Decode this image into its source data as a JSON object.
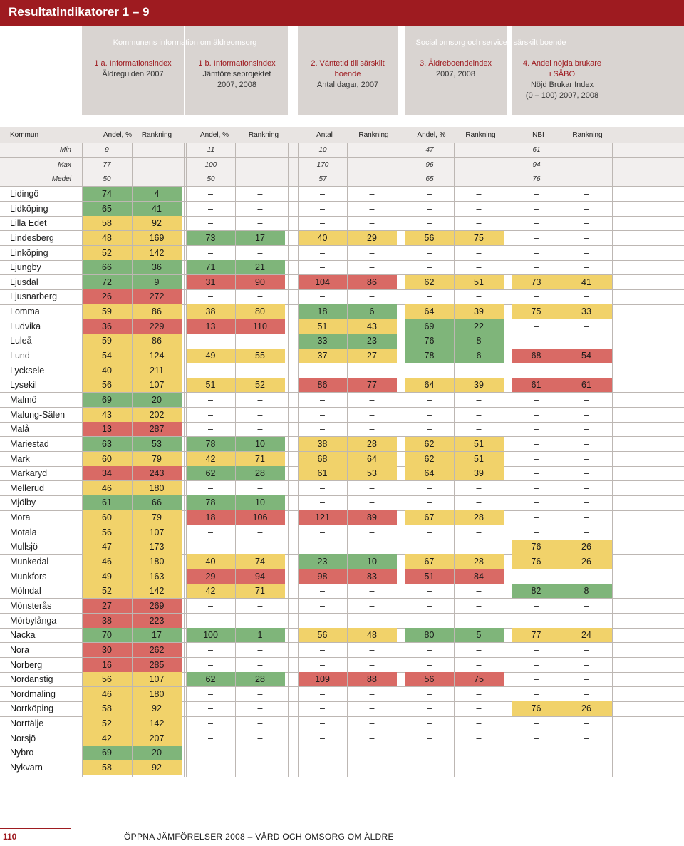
{
  "title": "Resultatindikatorer 1 – 9",
  "categories": {
    "left": "Kommunens information om äldreomsorg",
    "right": "Social omsorg och service i särskilt boende"
  },
  "indicators": [
    {
      "title": "1 a. Informationsindex",
      "sub1": "Äldreguiden 2007",
      "sub2": ""
    },
    {
      "title": "1 b. Informationsindex",
      "sub1": "Jämförelseprojektet",
      "sub2": "2007, 2008"
    },
    {
      "title": "2. Väntetid till särskilt",
      "title2": "boende",
      "sub1": "Antal dagar, 2007",
      "sub2": ""
    },
    {
      "title": "3. Äldreboendeindex",
      "sub1": "2007, 2008",
      "sub2": ""
    },
    {
      "title": "4. Andel nöjda brukare",
      "title2": "i SÄBO",
      "sub1": "Nöjd Brukar Index",
      "sub2": "(0 – 100) 2007, 2008"
    }
  ],
  "columns": [
    "Kommun",
    "Andel, %",
    "Rankning",
    "Andel, %",
    "Rankning",
    "Antal",
    "Rankning",
    "Andel, %",
    "Rankning",
    "NBI",
    "Rankning"
  ],
  "stats": [
    {
      "label": "Min",
      "values": [
        "9",
        "11",
        "10",
        "47",
        "61"
      ]
    },
    {
      "label": "Max",
      "values": [
        "77",
        "100",
        "170",
        "96",
        "94"
      ]
    },
    {
      "label": "Medel",
      "values": [
        "50",
        "50",
        "57",
        "65",
        "76"
      ]
    }
  ],
  "dash": "–",
  "rows": [
    {
      "name": "Lidingö",
      "v": [
        "74",
        "4",
        "–",
        "–",
        "–",
        "–",
        "–",
        "–",
        "–",
        "–"
      ],
      "c": [
        "g",
        "g",
        "",
        "",
        "",
        "",
        "",
        "",
        "",
        ""
      ]
    },
    {
      "name": "Lidköping",
      "v": [
        "65",
        "41",
        "–",
        "–",
        "–",
        "–",
        "–",
        "–",
        "–",
        "–"
      ],
      "c": [
        "g",
        "g",
        "",
        "",
        "",
        "",
        "",
        "",
        "",
        ""
      ]
    },
    {
      "name": "Lilla Edet",
      "v": [
        "58",
        "92",
        "–",
        "–",
        "–",
        "–",
        "–",
        "–",
        "–",
        "–"
      ],
      "c": [
        "y",
        "y",
        "",
        "",
        "",
        "",
        "",
        "",
        "",
        ""
      ]
    },
    {
      "name": "Lindesberg",
      "v": [
        "48",
        "169",
        "73",
        "17",
        "40",
        "29",
        "56",
        "75",
        "–",
        "–"
      ],
      "c": [
        "y",
        "y",
        "g",
        "g",
        "y",
        "y",
        "y",
        "y",
        "",
        ""
      ]
    },
    {
      "name": "Linköping",
      "v": [
        "52",
        "142",
        "–",
        "–",
        "–",
        "–",
        "–",
        "–",
        "–",
        "–"
      ],
      "c": [
        "y",
        "y",
        "",
        "",
        "",
        "",
        "",
        "",
        "",
        ""
      ]
    },
    {
      "name": "Ljungby",
      "v": [
        "66",
        "36",
        "71",
        "21",
        "–",
        "–",
        "–",
        "–",
        "–",
        "–"
      ],
      "c": [
        "g",
        "g",
        "g",
        "g",
        "",
        "",
        "",
        "",
        "",
        ""
      ]
    },
    {
      "name": "Ljusdal",
      "v": [
        "72",
        "9",
        "31",
        "90",
        "104",
        "86",
        "62",
        "51",
        "73",
        "41"
      ],
      "c": [
        "g",
        "g",
        "r",
        "r",
        "r",
        "r",
        "y",
        "y",
        "y",
        "y"
      ]
    },
    {
      "name": "Ljusnarberg",
      "v": [
        "26",
        "272",
        "–",
        "–",
        "–",
        "–",
        "–",
        "–",
        "–",
        "–"
      ],
      "c": [
        "r",
        "r",
        "",
        "",
        "",
        "",
        "",
        "",
        "",
        ""
      ]
    },
    {
      "name": "Lomma",
      "v": [
        "59",
        "86",
        "38",
        "80",
        "18",
        "6",
        "64",
        "39",
        "75",
        "33"
      ],
      "c": [
        "y",
        "y",
        "y",
        "y",
        "g",
        "g",
        "y",
        "y",
        "y",
        "y"
      ]
    },
    {
      "name": "Ludvika",
      "v": [
        "36",
        "229",
        "13",
        "110",
        "51",
        "43",
        "69",
        "22",
        "–",
        "–"
      ],
      "c": [
        "r",
        "r",
        "r",
        "r",
        "y",
        "y",
        "g",
        "g",
        "",
        ""
      ]
    },
    {
      "name": "Luleå",
      "v": [
        "59",
        "86",
        "–",
        "–",
        "33",
        "23",
        "76",
        "8",
        "–",
        "–"
      ],
      "c": [
        "y",
        "y",
        "",
        "",
        "g",
        "g",
        "g",
        "g",
        "",
        ""
      ]
    },
    {
      "name": "Lund",
      "v": [
        "54",
        "124",
        "49",
        "55",
        "37",
        "27",
        "78",
        "6",
        "68",
        "54"
      ],
      "c": [
        "y",
        "y",
        "y",
        "y",
        "y",
        "y",
        "g",
        "g",
        "r",
        "r"
      ]
    },
    {
      "name": "Lycksele",
      "v": [
        "40",
        "211",
        "–",
        "–",
        "–",
        "–",
        "–",
        "–",
        "–",
        "–"
      ],
      "c": [
        "y",
        "y",
        "",
        "",
        "",
        "",
        "",
        "",
        "",
        ""
      ]
    },
    {
      "name": "Lysekil",
      "v": [
        "56",
        "107",
        "51",
        "52",
        "86",
        "77",
        "64",
        "39",
        "61",
        "61"
      ],
      "c": [
        "y",
        "y",
        "y",
        "y",
        "r",
        "r",
        "y",
        "y",
        "r",
        "r"
      ]
    },
    {
      "name": "Malmö",
      "v": [
        "69",
        "20",
        "–",
        "–",
        "–",
        "–",
        "–",
        "–",
        "–",
        "–"
      ],
      "c": [
        "g",
        "g",
        "",
        "",
        "",
        "",
        "",
        "",
        "",
        ""
      ]
    },
    {
      "name": "Malung-Sälen",
      "v": [
        "43",
        "202",
        "–",
        "–",
        "–",
        "–",
        "–",
        "–",
        "–",
        "–"
      ],
      "c": [
        "y",
        "y",
        "",
        "",
        "",
        "",
        "",
        "",
        "",
        ""
      ]
    },
    {
      "name": "Malå",
      "v": [
        "13",
        "287",
        "–",
        "–",
        "–",
        "–",
        "–",
        "–",
        "–",
        "–"
      ],
      "c": [
        "r",
        "r",
        "",
        "",
        "",
        "",
        "",
        "",
        "",
        ""
      ]
    },
    {
      "name": "Mariestad",
      "v": [
        "63",
        "53",
        "78",
        "10",
        "38",
        "28",
        "62",
        "51",
        "–",
        "–"
      ],
      "c": [
        "g",
        "g",
        "g",
        "g",
        "y",
        "y",
        "y",
        "y",
        "",
        ""
      ]
    },
    {
      "name": "Mark",
      "v": [
        "60",
        "79",
        "42",
        "71",
        "68",
        "64",
        "62",
        "51",
        "–",
        "–"
      ],
      "c": [
        "y",
        "y",
        "y",
        "y",
        "y",
        "y",
        "y",
        "y",
        "",
        ""
      ]
    },
    {
      "name": "Markaryd",
      "v": [
        "34",
        "243",
        "62",
        "28",
        "61",
        "53",
        "64",
        "39",
        "–",
        "–"
      ],
      "c": [
        "r",
        "r",
        "g",
        "g",
        "y",
        "y",
        "y",
        "y",
        "",
        ""
      ]
    },
    {
      "name": "Mellerud",
      "v": [
        "46",
        "180",
        "–",
        "–",
        "–",
        "–",
        "–",
        "–",
        "–",
        "–"
      ],
      "c": [
        "y",
        "y",
        "",
        "",
        "",
        "",
        "",
        "",
        "",
        ""
      ]
    },
    {
      "name": "Mjölby",
      "v": [
        "61",
        "66",
        "78",
        "10",
        "–",
        "–",
        "–",
        "–",
        "–",
        "–"
      ],
      "c": [
        "g",
        "g",
        "g",
        "g",
        "",
        "",
        "",
        "",
        "",
        ""
      ]
    },
    {
      "name": "Mora",
      "v": [
        "60",
        "79",
        "18",
        "106",
        "121",
        "89",
        "67",
        "28",
        "–",
        "–"
      ],
      "c": [
        "y",
        "y",
        "r",
        "r",
        "r",
        "r",
        "y",
        "y",
        "",
        ""
      ]
    },
    {
      "name": "Motala",
      "v": [
        "56",
        "107",
        "–",
        "–",
        "–",
        "–",
        "–",
        "–",
        "–",
        "–"
      ],
      "c": [
        "y",
        "y",
        "",
        "",
        "",
        "",
        "",
        "",
        "",
        ""
      ]
    },
    {
      "name": "Mullsjö",
      "v": [
        "47",
        "173",
        "–",
        "–",
        "–",
        "–",
        "–",
        "–",
        "76",
        "26"
      ],
      "c": [
        "y",
        "y",
        "",
        "",
        "",
        "",
        "",
        "",
        "y",
        "y"
      ]
    },
    {
      "name": "Munkedal",
      "v": [
        "46",
        "180",
        "40",
        "74",
        "23",
        "10",
        "67",
        "28",
        "76",
        "26"
      ],
      "c": [
        "y",
        "y",
        "y",
        "y",
        "g",
        "g",
        "y",
        "y",
        "y",
        "y"
      ]
    },
    {
      "name": "Munkfors",
      "v": [
        "49",
        "163",
        "29",
        "94",
        "98",
        "83",
        "51",
        "84",
        "–",
        "–"
      ],
      "c": [
        "y",
        "y",
        "r",
        "r",
        "r",
        "r",
        "r",
        "r",
        "",
        ""
      ]
    },
    {
      "name": "Mölndal",
      "v": [
        "52",
        "142",
        "42",
        "71",
        "–",
        "–",
        "–",
        "–",
        "82",
        "8"
      ],
      "c": [
        "y",
        "y",
        "y",
        "y",
        "",
        "",
        "",
        "",
        "g",
        "g"
      ]
    },
    {
      "name": "Mönsterås",
      "v": [
        "27",
        "269",
        "–",
        "–",
        "–",
        "–",
        "–",
        "–",
        "–",
        "–"
      ],
      "c": [
        "r",
        "r",
        "",
        "",
        "",
        "",
        "",
        "",
        "",
        ""
      ]
    },
    {
      "name": "Mörbylånga",
      "v": [
        "38",
        "223",
        "–",
        "–",
        "–",
        "–",
        "–",
        "–",
        "–",
        "–"
      ],
      "c": [
        "r",
        "r",
        "",
        "",
        "",
        "",
        "",
        "",
        "",
        ""
      ]
    },
    {
      "name": "Nacka",
      "v": [
        "70",
        "17",
        "100",
        "1",
        "56",
        "48",
        "80",
        "5",
        "77",
        "24"
      ],
      "c": [
        "g",
        "g",
        "g",
        "g",
        "y",
        "y",
        "g",
        "g",
        "y",
        "y"
      ]
    },
    {
      "name": "Nora",
      "v": [
        "30",
        "262",
        "–",
        "–",
        "–",
        "–",
        "–",
        "–",
        "–",
        "–"
      ],
      "c": [
        "r",
        "r",
        "",
        "",
        "",
        "",
        "",
        "",
        "",
        ""
      ]
    },
    {
      "name": "Norberg",
      "v": [
        "16",
        "285",
        "–",
        "–",
        "–",
        "–",
        "–",
        "–",
        "–",
        "–"
      ],
      "c": [
        "r",
        "r",
        "",
        "",
        "",
        "",
        "",
        "",
        "",
        ""
      ]
    },
    {
      "name": "Nordanstig",
      "v": [
        "56",
        "107",
        "62",
        "28",
        "109",
        "88",
        "56",
        "75",
        "–",
        "–"
      ],
      "c": [
        "y",
        "y",
        "g",
        "g",
        "r",
        "r",
        "r",
        "r",
        "",
        ""
      ]
    },
    {
      "name": "Nordmaling",
      "v": [
        "46",
        "180",
        "–",
        "–",
        "–",
        "–",
        "–",
        "–",
        "–",
        "–"
      ],
      "c": [
        "y",
        "y",
        "",
        "",
        "",
        "",
        "",
        "",
        "",
        ""
      ]
    },
    {
      "name": "Norrköping",
      "v": [
        "58",
        "92",
        "–",
        "–",
        "–",
        "–",
        "–",
        "–",
        "76",
        "26"
      ],
      "c": [
        "y",
        "y",
        "",
        "",
        "",
        "",
        "",
        "",
        "y",
        "y"
      ]
    },
    {
      "name": "Norrtälje",
      "v": [
        "52",
        "142",
        "–",
        "–",
        "–",
        "–",
        "–",
        "–",
        "–",
        "–"
      ],
      "c": [
        "y",
        "y",
        "",
        "",
        "",
        "",
        "",
        "",
        "",
        ""
      ]
    },
    {
      "name": "Norsjö",
      "v": [
        "42",
        "207",
        "–",
        "–",
        "–",
        "–",
        "–",
        "–",
        "–",
        "–"
      ],
      "c": [
        "y",
        "y",
        "",
        "",
        "",
        "",
        "",
        "",
        "",
        ""
      ]
    },
    {
      "name": "Nybro",
      "v": [
        "69",
        "20",
        "–",
        "–",
        "–",
        "–",
        "–",
        "–",
        "–",
        "–"
      ],
      "c": [
        "g",
        "g",
        "",
        "",
        "",
        "",
        "",
        "",
        "",
        ""
      ]
    },
    {
      "name": "Nykvarn",
      "v": [
        "58",
        "92",
        "–",
        "–",
        "–",
        "–",
        "–",
        "–",
        "–",
        "–"
      ],
      "c": [
        "y",
        "y",
        "",
        "",
        "",
        "",
        "",
        "",
        "",
        ""
      ]
    }
  ],
  "footer": {
    "page": "110",
    "text": "ÖPPNA JÄMFÖRELSER 2008 – VÅRD OCH OMSORG OM ÄLDRE"
  }
}
